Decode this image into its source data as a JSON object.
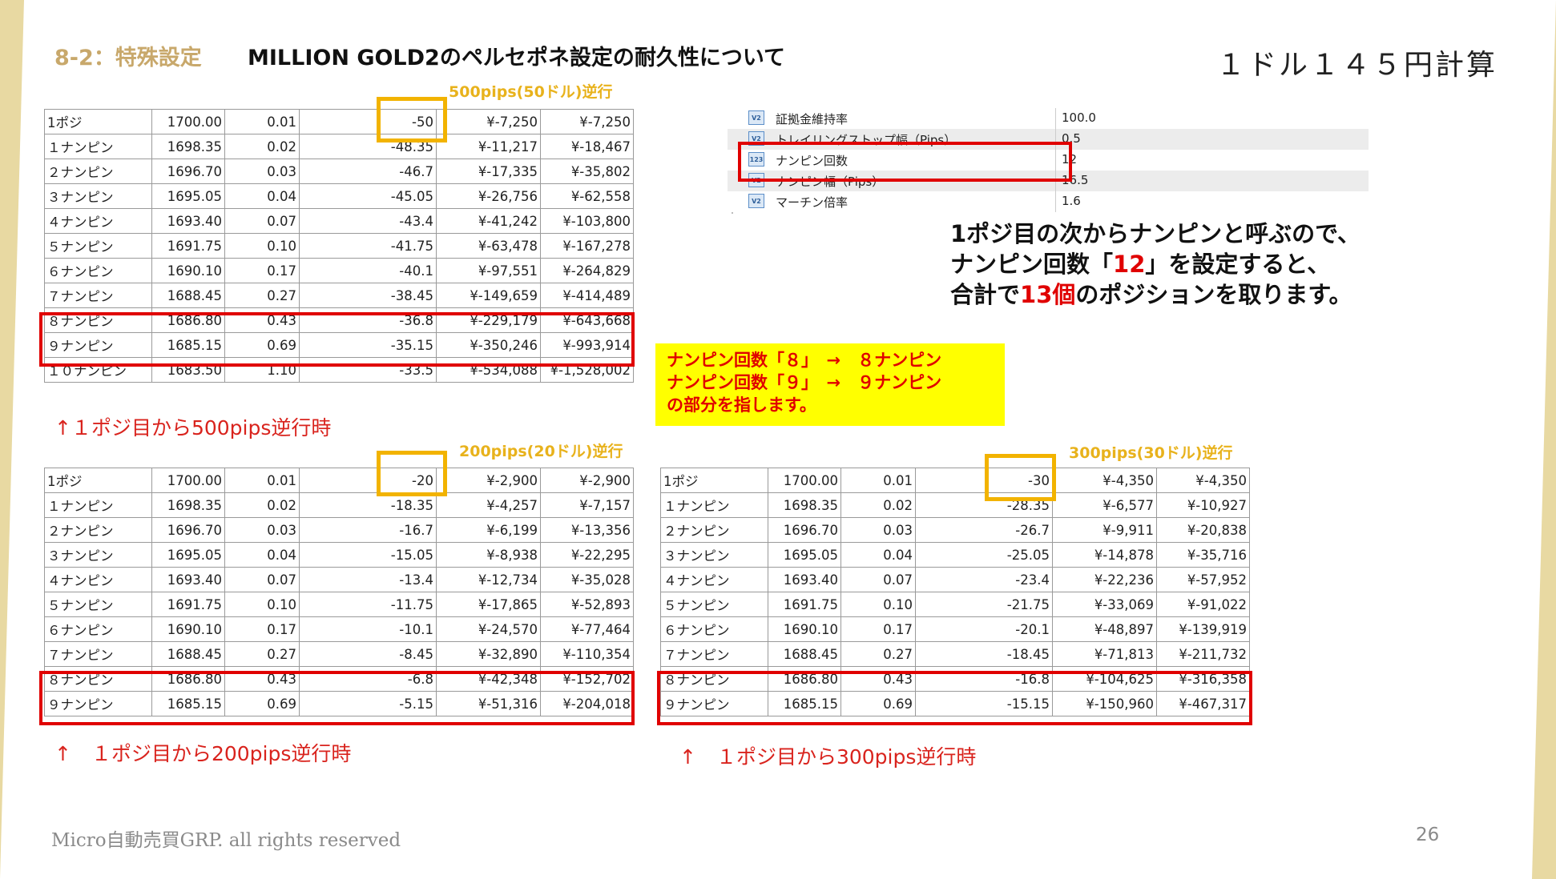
{
  "header": {
    "section": "8-2：特殊設定",
    "title": "MILLION GOLD2のペルセポネ設定の耐久性について",
    "rate_note": "１ドル１４５円計算"
  },
  "table1": {
    "label": "500pips(50ドル)逆行",
    "caption": "↑１ポジ目から500pips逆行時",
    "rows": [
      [
        "1ポジ",
        "1700.00",
        "0.01",
        "-50",
        "¥-7,250",
        "¥-7,250"
      ],
      [
        "１ナンピン",
        "1698.35",
        "0.02",
        "-48.35",
        "¥-11,217",
        "¥-18,467"
      ],
      [
        "２ナンピン",
        "1696.70",
        "0.03",
        "-46.7",
        "¥-17,335",
        "¥-35,802"
      ],
      [
        "３ナンピン",
        "1695.05",
        "0.04",
        "-45.05",
        "¥-26,756",
        "¥-62,558"
      ],
      [
        "４ナンピン",
        "1693.40",
        "0.07",
        "-43.4",
        "¥-41,242",
        "¥-103,800"
      ],
      [
        "５ナンピン",
        "1691.75",
        "0.10",
        "-41.75",
        "¥-63,478",
        "¥-167,278"
      ],
      [
        "６ナンピン",
        "1690.10",
        "0.17",
        "-40.1",
        "¥-97,551",
        "¥-264,829"
      ],
      [
        "７ナンピン",
        "1688.45",
        "0.27",
        "-38.45",
        "¥-149,659",
        "¥-414,489"
      ],
      [
        "８ナンピン",
        "1686.80",
        "0.43",
        "-36.8",
        "¥-229,179",
        "¥-643,668"
      ],
      [
        "９ナンピン",
        "1685.15",
        "0.69",
        "-35.15",
        "¥-350,246",
        "¥-993,914"
      ],
      [
        "１０ナンピン",
        "1683.50",
        "1.10",
        "-33.5",
        "¥-534,088",
        "¥-1,528,002"
      ]
    ]
  },
  "table2": {
    "label": "200pips(20ドル)逆行",
    "caption": "↑　１ポジ目から200pips逆行時",
    "rows": [
      [
        "1ポジ",
        "1700.00",
        "0.01",
        "-20",
        "¥-2,900",
        "¥-2,900"
      ],
      [
        "１ナンピン",
        "1698.35",
        "0.02",
        "-18.35",
        "¥-4,257",
        "¥-7,157"
      ],
      [
        "２ナンピン",
        "1696.70",
        "0.03",
        "-16.7",
        "¥-6,199",
        "¥-13,356"
      ],
      [
        "３ナンピン",
        "1695.05",
        "0.04",
        "-15.05",
        "¥-8,938",
        "¥-22,295"
      ],
      [
        "４ナンピン",
        "1693.40",
        "0.07",
        "-13.4",
        "¥-12,734",
        "¥-35,028"
      ],
      [
        "５ナンピン",
        "1691.75",
        "0.10",
        "-11.75",
        "¥-17,865",
        "¥-52,893"
      ],
      [
        "６ナンピン",
        "1690.10",
        "0.17",
        "-10.1",
        "¥-24,570",
        "¥-77,464"
      ],
      [
        "７ナンピン",
        "1688.45",
        "0.27",
        "-8.45",
        "¥-32,890",
        "¥-110,354"
      ],
      [
        "８ナンピン",
        "1686.80",
        "0.43",
        "-6.8",
        "¥-42,348",
        "¥-152,702"
      ],
      [
        "９ナンピン",
        "1685.15",
        "0.69",
        "-5.15",
        "¥-51,316",
        "¥-204,018"
      ]
    ]
  },
  "table3": {
    "label": "300pips(30ドル)逆行",
    "caption": "↑　１ポジ目から300pips逆行時",
    "rows": [
      [
        "1ポジ",
        "1700.00",
        "0.01",
        "-30",
        "¥-4,350",
        "¥-4,350"
      ],
      [
        "１ナンピン",
        "1698.35",
        "0.02",
        "-28.35",
        "¥-6,577",
        "¥-10,927"
      ],
      [
        "２ナンピン",
        "1696.70",
        "0.03",
        "-26.7",
        "¥-9,911",
        "¥-20,838"
      ],
      [
        "３ナンピン",
        "1695.05",
        "0.04",
        "-25.05",
        "¥-14,878",
        "¥-35,716"
      ],
      [
        "４ナンピン",
        "1693.40",
        "0.07",
        "-23.4",
        "¥-22,236",
        "¥-57,952"
      ],
      [
        "５ナンピン",
        "1691.75",
        "0.10",
        "-21.75",
        "¥-33,069",
        "¥-91,022"
      ],
      [
        "６ナンピン",
        "1690.10",
        "0.17",
        "-20.1",
        "¥-48,897",
        "¥-139,919"
      ],
      [
        "７ナンピン",
        "1688.45",
        "0.27",
        "-18.45",
        "¥-71,813",
        "¥-211,732"
      ],
      [
        "８ナンピン",
        "1686.80",
        "0.43",
        "-16.8",
        "¥-104,625",
        "¥-316,358"
      ],
      [
        "９ナンピン",
        "1685.15",
        "0.69",
        "-15.15",
        "¥-150,960",
        "¥-467,317"
      ]
    ]
  },
  "settings": {
    "rows": [
      {
        "icon": "V2",
        "name": "証拠金維持率",
        "value": "100.0"
      },
      {
        "icon": "V2",
        "name": "トレイリングストップ幅（Pips）",
        "value": "0.5"
      },
      {
        "icon": "123",
        "name": "ナンピン回数",
        "value": "12"
      },
      {
        "icon": "V2",
        "name": "ナンピン幅（Pips）",
        "value": "16.5"
      },
      {
        "icon": "V2",
        "name": "マーチン倍率",
        "value": "1.6"
      }
    ]
  },
  "explanation": {
    "line1": "1ポジ目の次からナンピンと呼ぶので、",
    "line2_pre": "ナンピン回数「",
    "line2_num": "12",
    "line2_post": "」を設定すると、",
    "line3_pre": "合計で",
    "line3_num": "13個",
    "line3_post": "のポジションを取ります。"
  },
  "note": {
    "text": "ナンピン回数「８」　→　８ナンピン\nナンピン回数「９」　→　９ナンピン\nの部分を指します。"
  },
  "footer": {
    "copyright": "Micro自動売買GRP. all rights reserved",
    "page": "26"
  },
  "colors": {
    "accent_gold": "#c8a86b",
    "highlight_red": "#e00000",
    "highlight_yellow": "#f2b300",
    "note_bg": "#ffff00"
  }
}
